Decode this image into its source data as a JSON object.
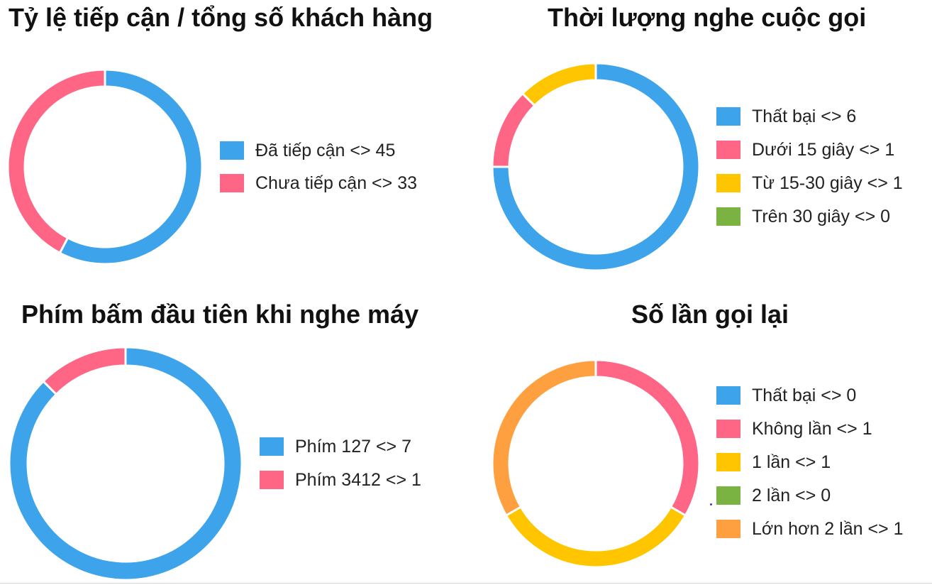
{
  "chart_data": [
    {
      "type": "pie",
      "title": "Tỷ lệ tiếp cận / tổng số khách hàng",
      "series": [
        {
          "name": "Đã tiếp cận",
          "value": 45,
          "color": "#3da3ea",
          "legend": "Đã tiếp cận <> 45"
        },
        {
          "name": "Chưa tiếp cận",
          "value": 33,
          "color": "#ff6584",
          "legend": "Chưa tiếp cận <> 33"
        }
      ]
    },
    {
      "type": "pie",
      "title": "Thời lượng nghe cuộc gọi",
      "series": [
        {
          "name": "Thất bại",
          "value": 6,
          "color": "#3da3ea",
          "legend": "Thất bại <> 6"
        },
        {
          "name": "Dưới 15 giây",
          "value": 1,
          "color": "#ff6584",
          "legend": "Dưới 15 giây <> 1"
        },
        {
          "name": "Từ 15-30 giây",
          "value": 1,
          "color": "#ffc600",
          "legend": "Từ 15-30 giây <> 1"
        },
        {
          "name": "Trên 30 giây",
          "value": 0,
          "color": "#7bb342",
          "legend": "Trên 30 giây <> 0"
        }
      ]
    },
    {
      "type": "pie",
      "title": "Phím bấm đầu tiên khi nghe máy",
      "series": [
        {
          "name": "Phím 127",
          "value": 7,
          "color": "#3da3ea",
          "legend": "Phím 127 <> 7"
        },
        {
          "name": "Phím 3412",
          "value": 1,
          "color": "#ff6584",
          "legend": "Phím 3412 <> 1"
        }
      ]
    },
    {
      "type": "pie",
      "title": "Số lần gọi lại",
      "series": [
        {
          "name": "Thất bại",
          "value": 0,
          "color": "#3da3ea",
          "legend": "Thất bại <> 0"
        },
        {
          "name": "Không lần",
          "value": 1,
          "color": "#ff6584",
          "legend": "Không lần <> 1"
        },
        {
          "name": "1 lần",
          "value": 1,
          "color": "#ffc600",
          "legend": "1 lần <> 1"
        },
        {
          "name": "2 lần",
          "value": 0,
          "color": "#7bb342",
          "legend": "2 lần <> 0"
        },
        {
          "name": "Lớn hơn 2 lần",
          "value": 1,
          "color": "#ffa040",
          "legend": "Lớn hơn 2 lần <> 1"
        }
      ]
    }
  ]
}
